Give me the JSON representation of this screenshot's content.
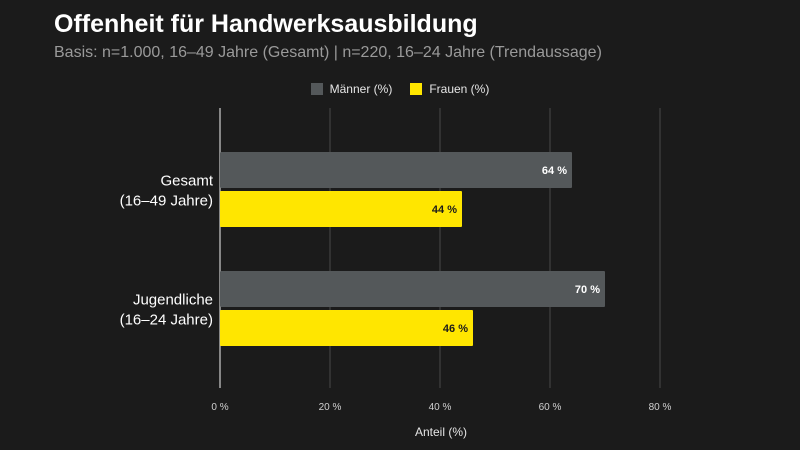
{
  "title": "Offenheit für Handwerksausbildung",
  "subtitle": "Basis: n=1.000, 16–49 Jahre (Gesamt) | n=220, 16–24 Jahre (Trendaussage)",
  "legend": {
    "men": "Männer (%)",
    "women": "Frauen (%)"
  },
  "colors": {
    "men": "#54585a",
    "women": "#ffe600",
    "grid": "#4a4a4a",
    "axis": "#cfcfcf"
  },
  "chart_data": {
    "type": "bar",
    "orientation": "horizontal",
    "categories": [
      [
        "Gesamt",
        "(16–49 Jahre)"
      ],
      [
        "Jugendliche",
        "(16–24 Jahre)"
      ]
    ],
    "series": [
      {
        "name": "Männer (%)",
        "values": [
          64,
          70
        ],
        "labels": [
          "64 %",
          "70 %"
        ]
      },
      {
        "name": "Frauen (%)",
        "values": [
          44,
          46
        ],
        "labels": [
          "44 %",
          "46 %"
        ]
      }
    ],
    "xlim": [
      0,
      80
    ],
    "xticks": [
      0,
      20,
      40,
      60,
      80
    ],
    "xtick_labels": [
      "0 %",
      "20 %",
      "40 %",
      "60 %",
      "80 %"
    ],
    "xlabel": "Anteil (%)",
    "grid": true,
    "legend_position": "top"
  }
}
